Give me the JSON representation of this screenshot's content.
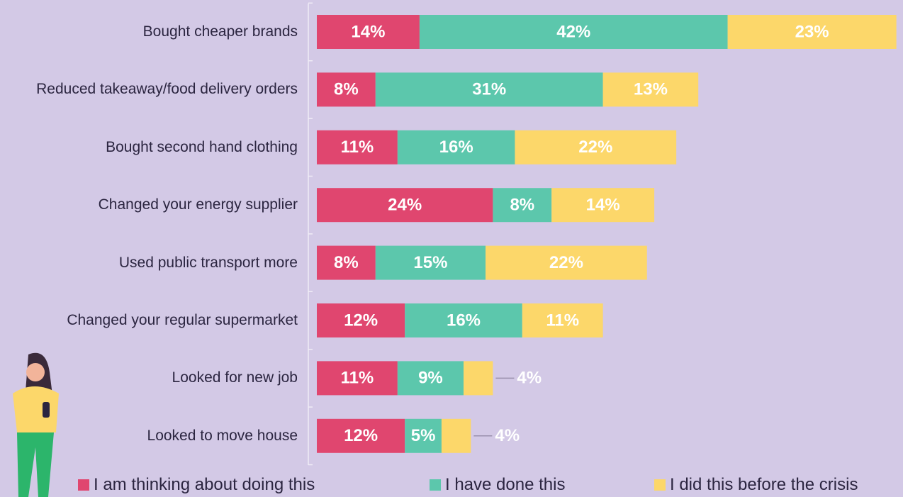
{
  "chart_data": {
    "type": "stacked-bar-horizontal",
    "categories": [
      "Bought cheaper brands",
      "Reduced takeaway/food delivery orders",
      "Bought second hand clothing",
      "Changed your energy supplier",
      "Used public transport more",
      "Changed your regular supermarket",
      "Looked for new job",
      "Looked to move house"
    ],
    "series": [
      {
        "name": "I am thinking about doing this",
        "color": "#e0466f",
        "values": [
          14,
          8,
          11,
          24,
          8,
          12,
          11,
          12
        ],
        "value_labels": [
          "14%",
          "8%",
          "11%",
          "24%",
          "8%",
          "12%",
          "11%",
          "12%"
        ]
      },
      {
        "name": "I have done this",
        "color": "#5cc7ac",
        "values": [
          42,
          31,
          16,
          8,
          15,
          16,
          9,
          5
        ],
        "value_labels": [
          "42%",
          "31%",
          "16%",
          "8%",
          "15%",
          "16%",
          "9%",
          "5%"
        ]
      },
      {
        "name": "I did this before the crisis",
        "color": "#fcd76a",
        "values": [
          23,
          13,
          22,
          14,
          22,
          11,
          4,
          4
        ],
        "value_labels": [
          "23%",
          "13%",
          "22%",
          "14%",
          "22%",
          "11%",
          "4%",
          "4%"
        ]
      }
    ]
  }
}
